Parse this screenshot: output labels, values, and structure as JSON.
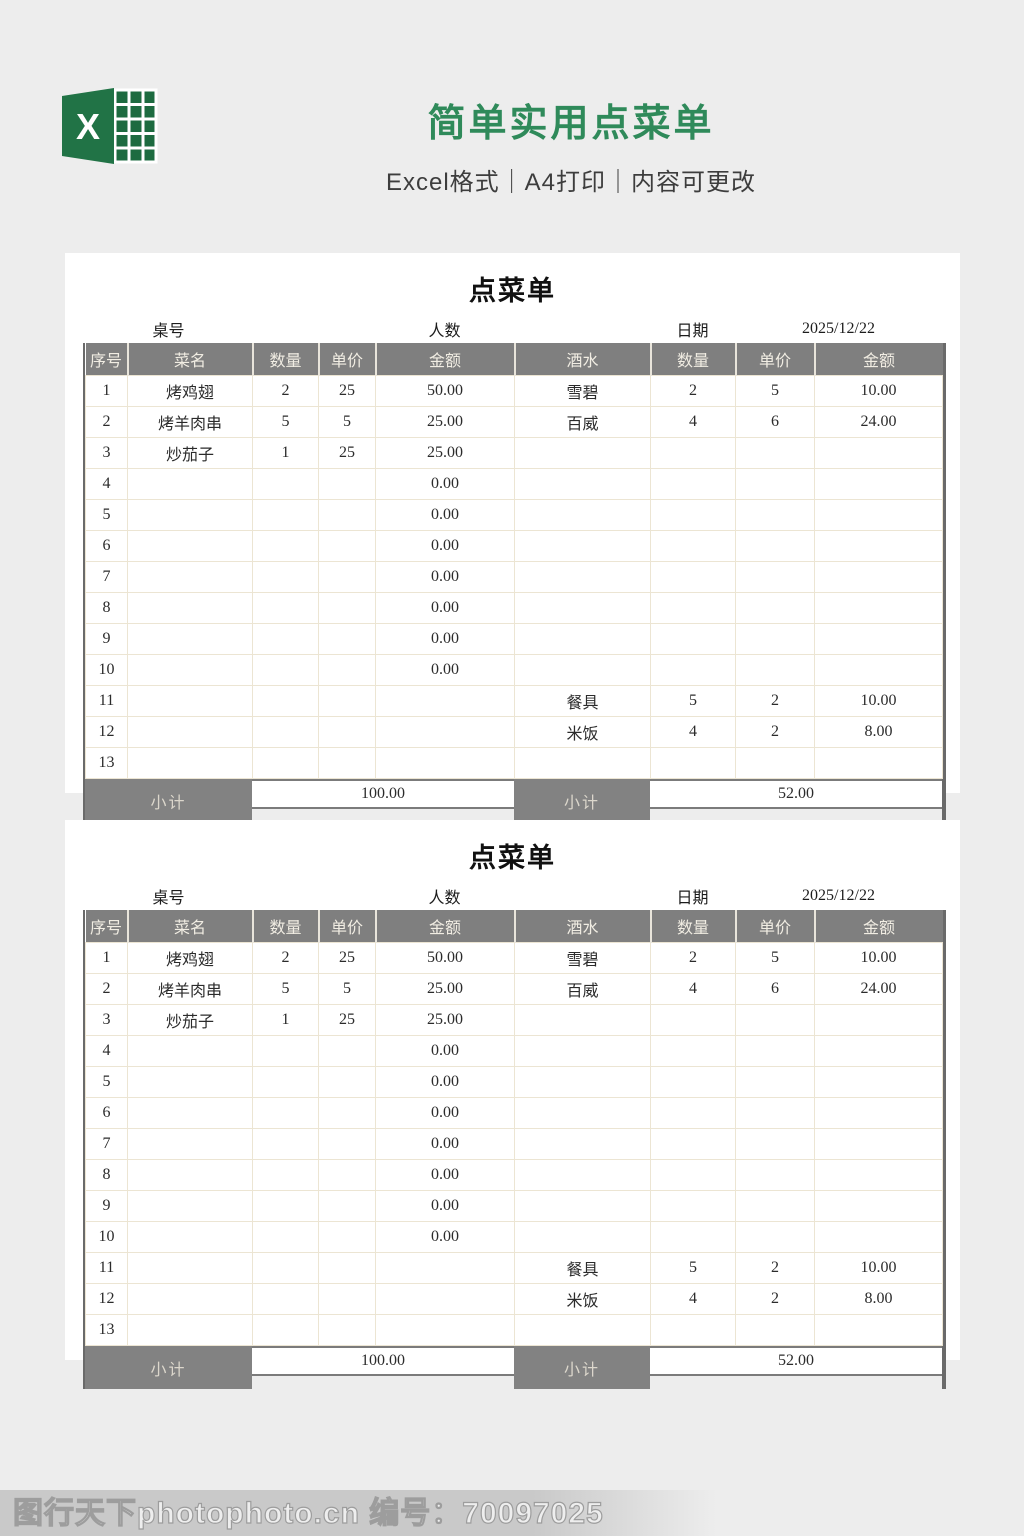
{
  "header": {
    "title": "简单实用点菜单",
    "subtitle": "Excel格式｜A4打印｜内容可更改",
    "excel_letter": "X"
  },
  "form": {
    "title": "点菜单",
    "info": {
      "table_label": "桌号",
      "people_label": "人数",
      "date_label": "日期",
      "date_value": "2025/12/22"
    },
    "columns": [
      "序号",
      "菜名",
      "数量",
      "单价",
      "金额",
      "酒水",
      "数量",
      "单价",
      "金额"
    ],
    "rows": [
      [
        "1",
        "烤鸡翅",
        "2",
        "25",
        "50.00",
        "雪碧",
        "2",
        "5",
        "10.00"
      ],
      [
        "2",
        "烤羊肉串",
        "5",
        "5",
        "25.00",
        "百威",
        "4",
        "6",
        "24.00"
      ],
      [
        "3",
        "炒茄子",
        "1",
        "25",
        "25.00",
        "",
        "",
        "",
        ""
      ],
      [
        "4",
        "",
        "",
        "",
        "0.00",
        "",
        "",
        "",
        ""
      ],
      [
        "5",
        "",
        "",
        "",
        "0.00",
        "",
        "",
        "",
        ""
      ],
      [
        "6",
        "",
        "",
        "",
        "0.00",
        "",
        "",
        "",
        ""
      ],
      [
        "7",
        "",
        "",
        "",
        "0.00",
        "",
        "",
        "",
        ""
      ],
      [
        "8",
        "",
        "",
        "",
        "0.00",
        "",
        "",
        "",
        ""
      ],
      [
        "9",
        "",
        "",
        "",
        "0.00",
        "",
        "",
        "",
        ""
      ],
      [
        "10",
        "",
        "",
        "",
        "0.00",
        "",
        "",
        "",
        ""
      ],
      [
        "11",
        "",
        "",
        "",
        "",
        "餐具",
        "5",
        "2",
        "10.00"
      ],
      [
        "12",
        "",
        "",
        "",
        "",
        "米饭",
        "4",
        "2",
        "8.00"
      ],
      [
        "13",
        "",
        "",
        "",
        "",
        "",
        "",
        "",
        ""
      ]
    ],
    "subtotal": {
      "label_food": "小计",
      "food_total": "100.00",
      "label_drink": "小计",
      "drink_total": "52.00"
    }
  },
  "watermark": {
    "text": "图行天下photophoto.cn 编号：70097025"
  },
  "colors": {
    "title_green": "#2f8a5a",
    "excel_green": "#217346",
    "header_gray": "#7f7f7f",
    "cell_border_cream": "#ece5d3",
    "page_background": "#ededed"
  }
}
